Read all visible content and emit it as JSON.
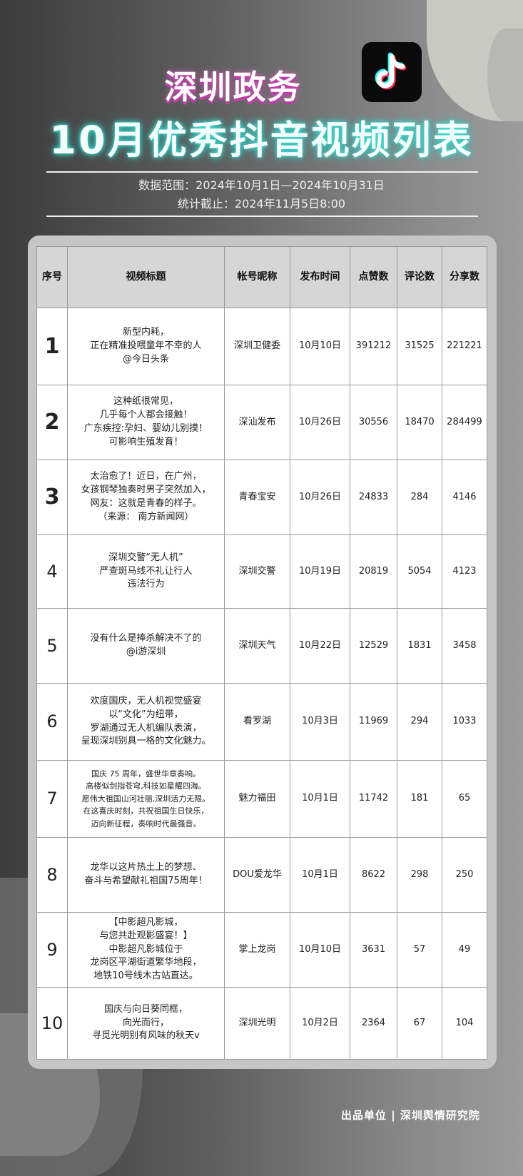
{
  "header": {
    "line1": "深圳政务",
    "line2": "10月优秀抖音视频列表",
    "logo_icon": "tiktok-icon",
    "range": "数据范围：2024年10月1日—2024年10月31日",
    "cutoff": "统计截止：2024年11月5日8:00"
  },
  "table": {
    "columns": [
      "序号",
      "视频标题",
      "帐号昵称",
      "发布时间",
      "点赞数",
      "评论数",
      "分享数"
    ],
    "rows": [
      {
        "no": "1",
        "title": [
          "新型内耗，",
          "正在精准投喂童年不幸的人",
          "@今日头条"
        ],
        "account": "深圳卫健委",
        "date": "10月10日",
        "likes": "391212",
        "comments": "31525",
        "shares": "221221"
      },
      {
        "no": "2",
        "title": [
          "这种纸很常见，",
          "几乎每个人都会接触！",
          "广东疾控:孕妇、婴幼儿别摸！",
          "可影响生殖发育！"
        ],
        "account": "深汕发布",
        "date": "10月26日",
        "likes": "30556",
        "comments": "18470",
        "shares": "284499"
      },
      {
        "no": "3",
        "title": [
          "太治愈了！近日，在广州，",
          "女孩钢琴独奏时男子突然加入，",
          "网友：这就是青春的样子。",
          "（来源： 南方新闻网）"
        ],
        "account": "青春宝安",
        "date": "10月26日",
        "likes": "24833",
        "comments": "284",
        "shares": "4146"
      },
      {
        "no": "4",
        "title": [
          "深圳交警“无人机”",
          "严查斑马线不礼让行人",
          "违法行为"
        ],
        "account": "深圳交警",
        "date": "10月19日",
        "likes": "20819",
        "comments": "5054",
        "shares": "4123"
      },
      {
        "no": "5",
        "title": [
          "没有什么是捧杀解决不了的",
          "@i游深圳"
        ],
        "account": "深圳天气",
        "date": "10月22日",
        "likes": "12529",
        "comments": "1831",
        "shares": "3458"
      },
      {
        "no": "6",
        "title": [
          "欢度国庆，无人机视觉盛宴",
          "以“文化”为纽带，",
          "罗湖通过无人机编队表演，",
          "呈现深圳别具一格的文化魅力。"
        ],
        "account": "看罗湖",
        "date": "10月3日",
        "likes": "11969",
        "comments": "294",
        "shares": "1033"
      },
      {
        "no": "7",
        "title": [
          "国庆 75 周年，盛世华章奏响。",
          "高楼似剑指苍穹,科技如星耀四海。",
          "愿伟大祖国山河壮丽,深圳活力无限。",
          "在这喜庆时刻，共祝祖国生日快乐，",
          "迈向新征程，奏响时代最强音。"
        ],
        "account": "魅力福田",
        "date": "10月1日",
        "likes": "11742",
        "comments": "181",
        "shares": "65"
      },
      {
        "no": "8",
        "title": [
          "龙华以这片热土上的梦想、",
          "奋斗与希望献礼祖国75周年！"
        ],
        "account": "DOU爱龙华",
        "date": "10月1日",
        "likes": "8622",
        "comments": "298",
        "shares": "250"
      },
      {
        "no": "9",
        "title": [
          "【中影超凡影城，",
          "与您共赴观影盛宴！】",
          "中影超凡影城位于",
          "龙岗区平湖街道繁华地段，",
          "地铁10号线木古站直达。"
        ],
        "account": "掌上龙岗",
        "date": "10月10日",
        "likes": "3631",
        "comments": "57",
        "shares": "49"
      },
      {
        "no": "10",
        "title": [
          "国庆与向日葵同框，",
          "向光而行，",
          "寻觅光明别有风味的秋天v"
        ],
        "account": "深圳光明",
        "date": "10月2日",
        "likes": "2364",
        "comments": "67",
        "shares": "104"
      }
    ]
  },
  "footer": "出品单位 | 深圳舆情研究院"
}
